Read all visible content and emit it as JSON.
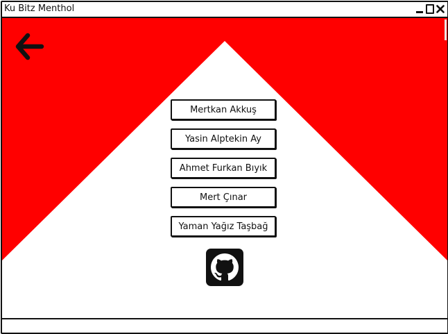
{
  "window": {
    "title": "Ku Bitz Menthol"
  },
  "colors": {
    "accent": "#ff0000",
    "background": "#ffffff",
    "ink": "#111111"
  },
  "icons": {
    "back": "arrow-left-icon",
    "github": "github-icon"
  },
  "members": [
    {
      "label": "Mertkan Akkuş"
    },
    {
      "label": "Yasin Alptekin Ay"
    },
    {
      "label": "Ahmet Furkan Bıyık"
    },
    {
      "label": "Mert Çınar"
    },
    {
      "label": "Yaman Yağız Taşbağ"
    }
  ]
}
